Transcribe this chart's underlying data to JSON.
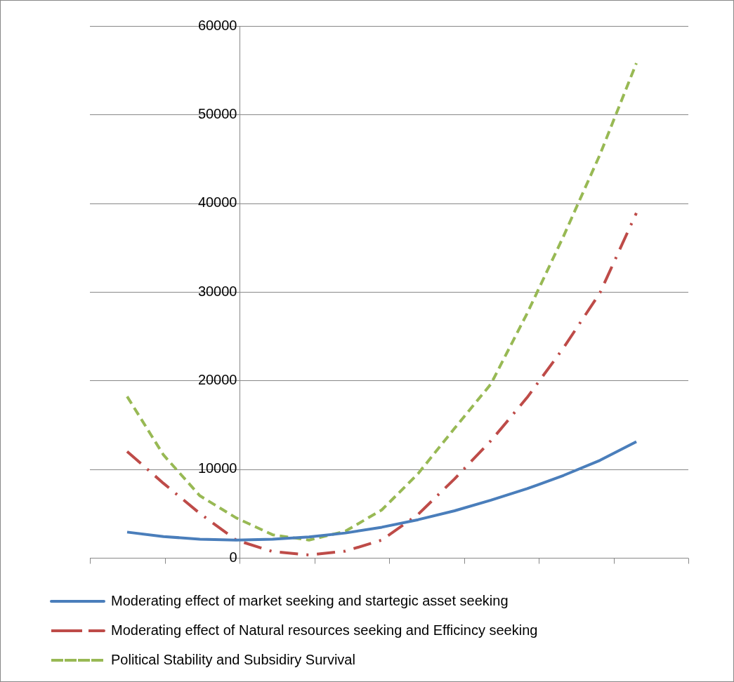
{
  "chart_data": {
    "type": "line",
    "categories": [
      null,
      null,
      null,
      null,
      null,
      null,
      null,
      null,
      null,
      null,
      null,
      null,
      null,
      null,
      null
    ],
    "ylim": [
      0,
      60000
    ],
    "yticks": [
      0,
      10000,
      20000,
      30000,
      40000,
      50000,
      60000
    ],
    "grid": "y",
    "legend": "bottom left",
    "marker": "none",
    "series": [
      {
        "name": "Moderating effect of market seeking and startegic asset seeking",
        "color": "#4a7ebb",
        "line_style": "solid",
        "values": [
          2900,
          2400,
          2100,
          2000,
          2100,
          2350,
          2800,
          3450,
          4300,
          5300,
          6500,
          7800,
          9300,
          11000,
          13100
        ]
      },
      {
        "name": "Moderating effect of Natural resources seeking and Efficincy seeking",
        "color": "#be4b48",
        "line_style": "dashdot",
        "values": [
          12000,
          8400,
          5000,
          2000,
          700,
          320,
          750,
          2000,
          4900,
          8900,
          13200,
          18100,
          23700,
          29900,
          38900
        ]
      },
      {
        "name": "Political Stability and Subsidiry Survival",
        "color": "#98b954",
        "line_style": "dashed",
        "values": [
          18200,
          11600,
          7000,
          4500,
          2600,
          2000,
          3000,
          5400,
          9500,
          14600,
          19600,
          27600,
          36300,
          45500,
          55800
        ]
      }
    ]
  }
}
